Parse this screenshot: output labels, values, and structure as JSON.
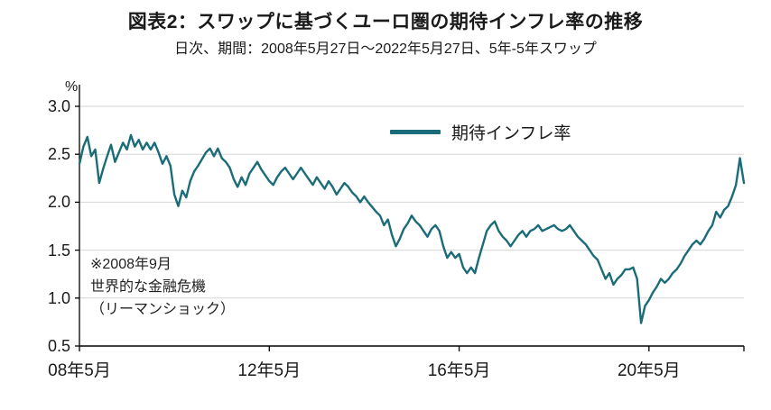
{
  "header": {
    "title": "図表2：スワップに基づくユーロ圏の期待インフレ率の推移",
    "subtitle": "日次、期間：2008年5月27日～2022年5月27日、5年-5年スワップ"
  },
  "legend": {
    "label": "期待インフレ率"
  },
  "annotation": {
    "lines": [
      "※2008年9月",
      "世界的な金融危機",
      "（リーマンショック）"
    ]
  },
  "chart_data": {
    "type": "line",
    "title": "図表2：スワップに基づくユーロ圏の期待インフレ率の推移",
    "subtitle": "日次、期間：2008年5月27日～2022年5月27日、5年-5年スワップ",
    "ylabel": "%",
    "ylim": [
      0.5,
      3.0
    ],
    "yticks": [
      0.5,
      1.0,
      1.5,
      2.0,
      2.5,
      3.0
    ],
    "ytick_labels": [
      "0.5",
      "1.0",
      "1.5",
      "2.0",
      "2.5",
      "3.0"
    ],
    "x_range_years": [
      2008.4167,
      2022.4167
    ],
    "xticks": [
      {
        "year": 2008.4167,
        "label": "08年5月"
      },
      {
        "year": 2012.4167,
        "label": "12年5月"
      },
      {
        "year": 2016.4167,
        "label": "16年5月"
      },
      {
        "year": 2020.4167,
        "label": "20年5月"
      }
    ],
    "grid": "horizontal",
    "legend_position": "inside-top-center",
    "series": [
      {
        "name": "期待インフレ率",
        "color": "#1a6c78",
        "x_start_year": 2008.4167,
        "x_step_years": 0.0833333,
        "values": [
          2.4,
          2.58,
          2.68,
          2.48,
          2.55,
          2.2,
          2.35,
          2.48,
          2.6,
          2.42,
          2.52,
          2.62,
          2.55,
          2.7,
          2.58,
          2.65,
          2.55,
          2.62,
          2.55,
          2.62,
          2.52,
          2.4,
          2.48,
          2.38,
          2.08,
          1.96,
          2.12,
          2.05,
          2.22,
          2.32,
          2.38,
          2.45,
          2.52,
          2.56,
          2.48,
          2.56,
          2.46,
          2.42,
          2.36,
          2.24,
          2.16,
          2.26,
          2.18,
          2.3,
          2.36,
          2.42,
          2.34,
          2.28,
          2.22,
          2.18,
          2.26,
          2.32,
          2.36,
          2.3,
          2.24,
          2.3,
          2.36,
          2.3,
          2.24,
          2.18,
          2.26,
          2.2,
          2.14,
          2.22,
          2.16,
          2.08,
          2.14,
          2.2,
          2.16,
          2.1,
          2.06,
          2.0,
          2.06,
          2.0,
          1.95,
          1.9,
          1.86,
          1.76,
          1.82,
          1.66,
          1.54,
          1.62,
          1.72,
          1.78,
          1.86,
          1.8,
          1.76,
          1.7,
          1.64,
          1.72,
          1.76,
          1.7,
          1.54,
          1.42,
          1.48,
          1.42,
          1.46,
          1.32,
          1.26,
          1.32,
          1.26,
          1.42,
          1.56,
          1.7,
          1.76,
          1.8,
          1.7,
          1.64,
          1.6,
          1.54,
          1.6,
          1.66,
          1.7,
          1.64,
          1.7,
          1.72,
          1.76,
          1.7,
          1.72,
          1.74,
          1.76,
          1.72,
          1.7,
          1.72,
          1.76,
          1.7,
          1.64,
          1.6,
          1.56,
          1.5,
          1.44,
          1.4,
          1.3,
          1.2,
          1.26,
          1.14,
          1.2,
          1.24,
          1.3,
          1.3,
          1.32,
          1.2,
          0.74,
          0.92,
          0.98,
          1.06,
          1.12,
          1.2,
          1.16,
          1.2,
          1.26,
          1.3,
          1.36,
          1.44,
          1.5,
          1.56,
          1.6,
          1.56,
          1.62,
          1.7,
          1.76,
          1.9,
          1.84,
          1.92,
          1.96,
          2.06,
          2.18,
          2.46,
          2.2
        ]
      }
    ]
  }
}
